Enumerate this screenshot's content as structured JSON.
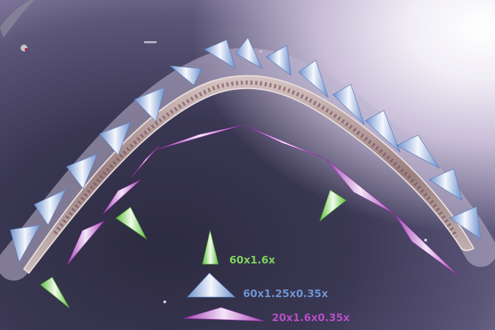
{
  "scene": {
    "subject": "nematode-micrograph",
    "colors": {
      "green": "#7ed25c",
      "blue": "#8fb1e0",
      "purple": "#b64ec6",
      "worm_body": "#b49a98"
    }
  },
  "legend": {
    "green_label": "60x1.6x",
    "blue_label": "60x1.25x0.35x",
    "purple_label": "20x1.6x0.35x"
  }
}
